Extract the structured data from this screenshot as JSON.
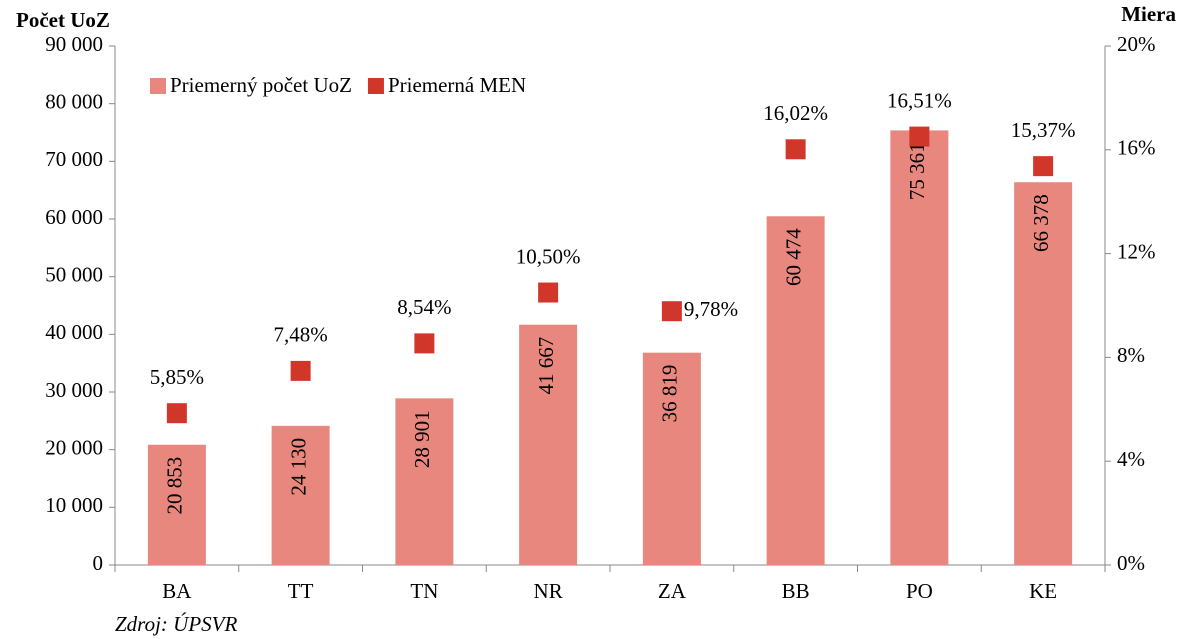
{
  "chart_data": {
    "type": "bar",
    "title": "Počet UoZ",
    "y2_title": "Miera",
    "source": "Zdroj: ÚPSVR",
    "categories": [
      "BA",
      "TT",
      "TN",
      "NR",
      "ZA",
      "BB",
      "PO",
      "KE"
    ],
    "series": [
      {
        "name": "Priemerný počet UoZ",
        "type": "bar",
        "color": "#e8877e",
        "values": [
          20853,
          24130,
          28901,
          41667,
          36819,
          60474,
          75361,
          66378
        ],
        "value_labels": [
          "20 853",
          "24 130",
          "28 901",
          "41 667",
          "36 819",
          "60 474",
          "75 361",
          "66 378"
        ]
      },
      {
        "name": "Priemerná MEN",
        "type": "scatter",
        "axis": "y2",
        "color": "#d0372a",
        "values": [
          5.85,
          7.48,
          8.54,
          10.5,
          9.78,
          16.02,
          16.51,
          15.37
        ],
        "value_labels": [
          "5,85%",
          "7,48%",
          "8,54%",
          "10,50%",
          "9,78%",
          "16,02%",
          "16,51%",
          "15,37%"
        ]
      }
    ],
    "ylim": [
      0,
      90000
    ],
    "yticks": [
      0,
      {
        "value": 10000,
        "label": "10 000"
      },
      {
        "value": 20000,
        "label": "20 000"
      },
      {
        "value": 30000,
        "label": "30 000"
      },
      {
        "value": 40000,
        "label": "40 000"
      },
      {
        "value": 50000,
        "label": "50 000"
      },
      {
        "value": 60000,
        "label": "60 000"
      },
      {
        "value": 70000,
        "label": "70 000"
      },
      {
        "value": 80000,
        "label": "80 000"
      },
      {
        "value": 90000,
        "label": "90 000"
      }
    ],
    "y2lim": [
      0,
      20
    ],
    "y2ticks": [
      {
        "value": 0,
        "label": "0%"
      },
      {
        "value": 4,
        "label": "4%"
      },
      {
        "value": 8,
        "label": "8%"
      },
      {
        "value": 12,
        "label": "12%"
      },
      {
        "value": 16,
        "label": "16%"
      },
      {
        "value": 20,
        "label": "20%"
      }
    ],
    "legend": "top-left",
    "grid": false
  }
}
